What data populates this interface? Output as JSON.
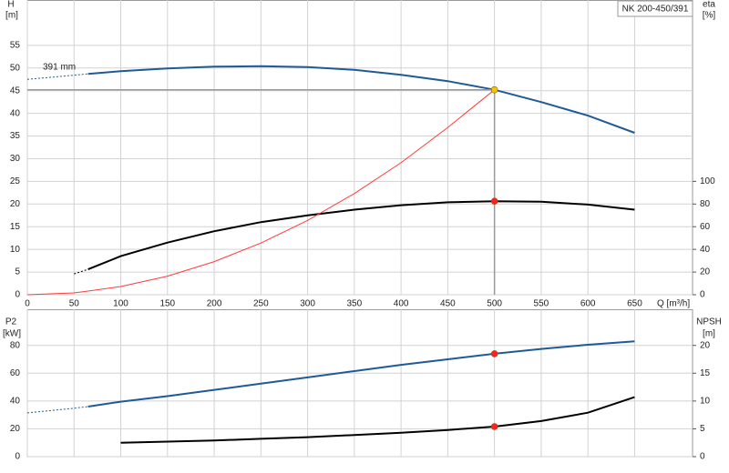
{
  "chart_data": [
    {
      "type": "line",
      "title": "NK 200-450/391",
      "annotation": "391 mm",
      "y_label": "H",
      "y_unit": "[m]",
      "y2_label": "eta",
      "y2_unit": "[%]",
      "x_label": "Q [m³/h]",
      "x": [
        0,
        50,
        65,
        100,
        150,
        200,
        250,
        300,
        350,
        400,
        450,
        500,
        550,
        600,
        650
      ],
      "xlim": [
        0,
        712
      ],
      "xticks": [
        0,
        50,
        100,
        150,
        200,
        250,
        300,
        350,
        400,
        450,
        500,
        550,
        600,
        650
      ],
      "xtick_labels": true,
      "ylim": [
        0,
        65
      ],
      "yticks": [
        0,
        5,
        10,
        15,
        20,
        25,
        30,
        35,
        40,
        45,
        50,
        55
      ],
      "y2lim": [
        0,
        260
      ],
      "y2ticks": [
        0,
        20,
        40,
        60,
        80,
        100
      ],
      "grid": true,
      "series": [
        {
          "color": "#1f5a96",
          "style": "dashed",
          "values": [
            47.5,
            48.4,
            48.7,
            null,
            null,
            null,
            null,
            null,
            null,
            null,
            null,
            null,
            null,
            null,
            null
          ]
        },
        {
          "color": "#1f5a96",
          "style": "line",
          "values": [
            null,
            null,
            48.7,
            49.3,
            49.9,
            50.3,
            50.4,
            50.2,
            49.6,
            48.5,
            47.1,
            45.2,
            42.5,
            39.5,
            35.7
          ]
        },
        {
          "color": "#000000",
          "style": "dashed",
          "axis": "y2",
          "values": [
            null,
            18.4,
            22.4,
            null,
            null,
            null,
            null,
            null,
            null,
            null,
            null,
            null,
            null,
            null,
            null
          ]
        },
        {
          "color": "#000000",
          "style": "line",
          "axis": "y2",
          "values": [
            null,
            null,
            22.4,
            34,
            46,
            56,
            64,
            70,
            75,
            79,
            81.5,
            82.5,
            82,
            79.5,
            75
          ]
        },
        {
          "color": "#ff3b3b",
          "style": "thin",
          "values": [
            0,
            0.4,
            0.8,
            1.8,
            4.1,
            7.3,
            11.4,
            16.4,
            22.3,
            29.1,
            36.9,
            45.2,
            null,
            null,
            null
          ]
        },
        {
          "color": "#f5c400",
          "style": "point",
          "guide": true,
          "values": [
            null,
            null,
            null,
            null,
            null,
            null,
            null,
            null,
            null,
            null,
            null,
            45.2,
            null,
            null,
            null
          ]
        },
        {
          "color": "#ff2020",
          "style": "point",
          "axis": "y2",
          "values": [
            null,
            null,
            null,
            null,
            null,
            null,
            null,
            null,
            null,
            null,
            null,
            82.5,
            null,
            null,
            null
          ]
        }
      ]
    },
    {
      "type": "line",
      "y_label": "P2",
      "y_unit": "[kW]",
      "y2_label": "NPSH",
      "y2_unit": "[m]",
      "x": [
        0,
        50,
        65,
        100,
        150,
        200,
        250,
        300,
        350,
        400,
        450,
        500,
        550,
        600,
        650
      ],
      "xlim": [
        0,
        712
      ],
      "xticks": [
        0,
        50,
        100,
        150,
        200,
        250,
        300,
        350,
        400,
        450,
        500,
        550,
        600,
        650
      ],
      "xtick_labels": false,
      "ylim": [
        0,
        106
      ],
      "yticks": [
        0,
        20,
        40,
        60,
        80
      ],
      "y2lim": [
        0,
        26.5
      ],
      "y2ticks": [
        0,
        5,
        10,
        15,
        20
      ],
      "grid": true,
      "series": [
        {
          "color": "#1f5a96",
          "style": "dashed",
          "values": [
            31.5,
            34.8,
            36,
            null,
            null,
            null,
            null,
            null,
            null,
            null,
            null,
            null,
            null,
            null,
            null
          ]
        },
        {
          "color": "#1f5a96",
          "style": "line",
          "values": [
            null,
            null,
            36,
            39.5,
            43.5,
            48,
            52.5,
            57,
            61.5,
            66,
            70,
            74,
            77.5,
            80.5,
            83
          ]
        },
        {
          "color": "#000000",
          "style": "line",
          "axis": "y2",
          "values": [
            null,
            null,
            null,
            2.5,
            2.7,
            2.9,
            3.2,
            3.5,
            3.9,
            4.3,
            4.8,
            5.4,
            6.4,
            7.9,
            10.7
          ]
        },
        {
          "color": "#ff2020",
          "style": "point",
          "values": [
            null,
            null,
            null,
            null,
            null,
            null,
            null,
            null,
            null,
            null,
            null,
            74,
            null,
            null,
            null
          ]
        },
        {
          "color": "#ff2020",
          "style": "point",
          "axis": "y2",
          "values": [
            null,
            null,
            null,
            null,
            null,
            null,
            null,
            null,
            null,
            null,
            null,
            5.4,
            null,
            null,
            null
          ]
        }
      ]
    }
  ]
}
